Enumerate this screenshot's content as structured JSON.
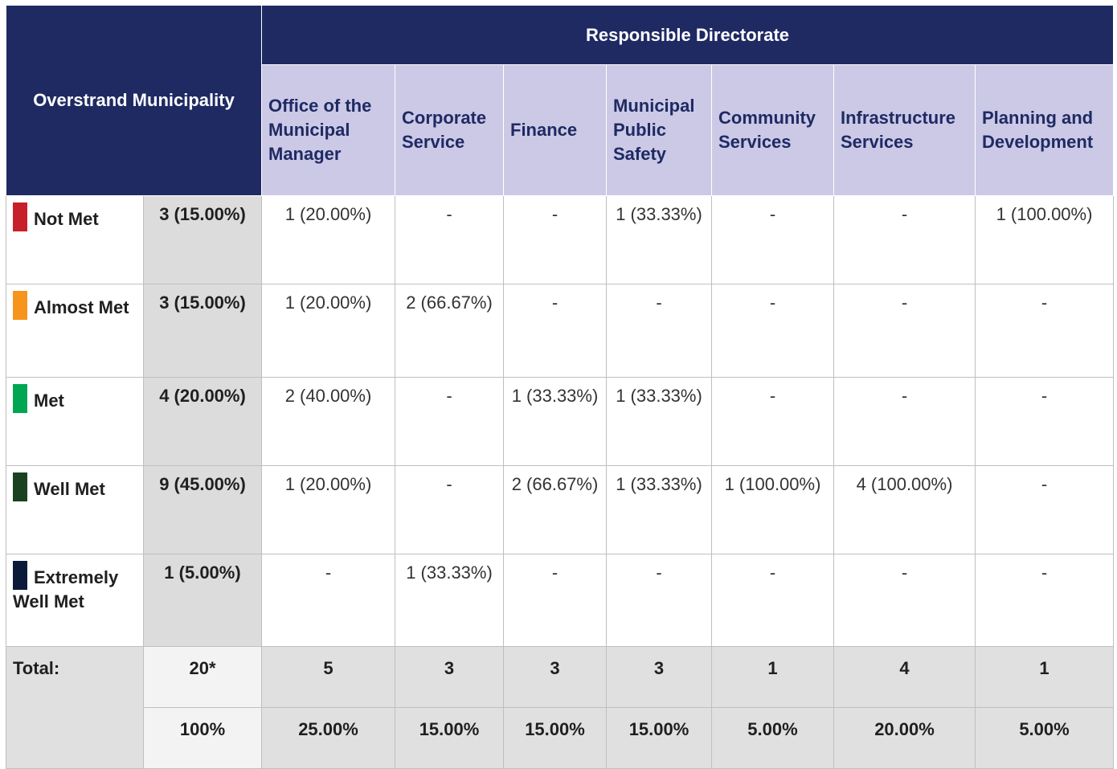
{
  "header": {
    "title": "Overstrand Municipality",
    "group": "Responsible Directorate",
    "columns": [
      "Office of the Municipal Manager",
      "Corporate Service",
      "Finance",
      "Municipal Public Safety",
      "Community Services",
      "Infrastructure Services",
      "Planning and Development"
    ]
  },
  "rows": [
    {
      "label": "Not Met",
      "color": "#c8202a",
      "total": "3 (15.00%)",
      "cells": [
        "1 (20.00%)",
        "-",
        "-",
        "1 (33.33%)",
        "-",
        "-",
        "1 (100.00%)"
      ]
    },
    {
      "label": "Almost Met",
      "color": "#f7941d",
      "total": "3 (15.00%)",
      "cells": [
        "1 (20.00%)",
        "2 (66.67%)",
        "-",
        "-",
        "-",
        "-",
        "-"
      ]
    },
    {
      "label": "Met",
      "color": "#00a651",
      "total": "4 (20.00%)",
      "cells": [
        "2 (40.00%)",
        "-",
        "1 (33.33%)",
        "1 (33.33%)",
        "-",
        "-",
        "-"
      ]
    },
    {
      "label": "Well Met",
      "color": "#1a4220",
      "total": "9 (45.00%)",
      "cells": [
        "1 (20.00%)",
        "-",
        "2 (66.67%)",
        "1 (33.33%)",
        "1 (100.00%)",
        "4 (100.00%)",
        "-"
      ]
    },
    {
      "label": "Extremely Well Met",
      "color": "#0c1a3a",
      "total": "1 (5.00%)",
      "cells": [
        "-",
        "1 (33.33%)",
        "-",
        "-",
        "-",
        "-",
        "-"
      ]
    }
  ],
  "totals": {
    "label": "Total:",
    "count": "20*",
    "counts": [
      "5",
      "3",
      "3",
      "3",
      "1",
      "4",
      "1"
    ],
    "percent": "100%",
    "percents": [
      "25.00%",
      "15.00%",
      "15.00%",
      "15.00%",
      "5.00%",
      "20.00%",
      "5.00%"
    ]
  }
}
